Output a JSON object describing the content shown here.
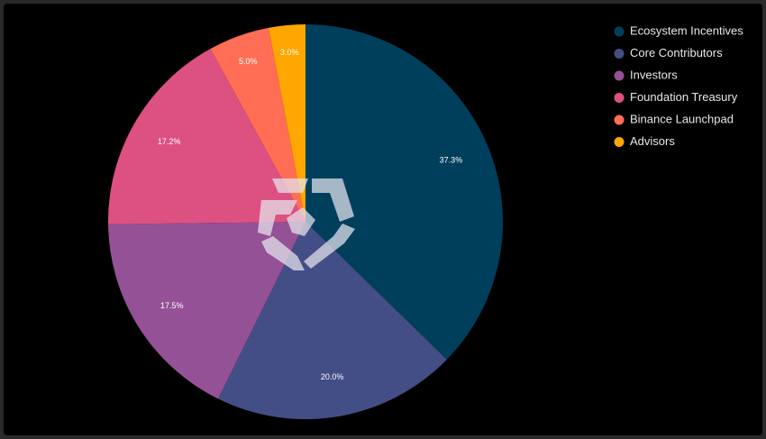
{
  "chart_data": {
    "type": "pie",
    "categories": [
      "Ecosystem Incentives",
      "Core Contributors",
      "Investors",
      "Foundation Treasury",
      "Binance Launchpad",
      "Advisors"
    ],
    "values": [
      37.3,
      20.0,
      17.5,
      17.2,
      5.0,
      3.0
    ],
    "value_labels": [
      "37.3%",
      "20.0%",
      "17.5%",
      "17.2%",
      "5.0%",
      "3.0%"
    ],
    "colors": [
      "#003f5c",
      "#444e86",
      "#955196",
      "#dd5182",
      "#ff6e54",
      "#ffa600"
    ],
    "legend": "top-right"
  }
}
